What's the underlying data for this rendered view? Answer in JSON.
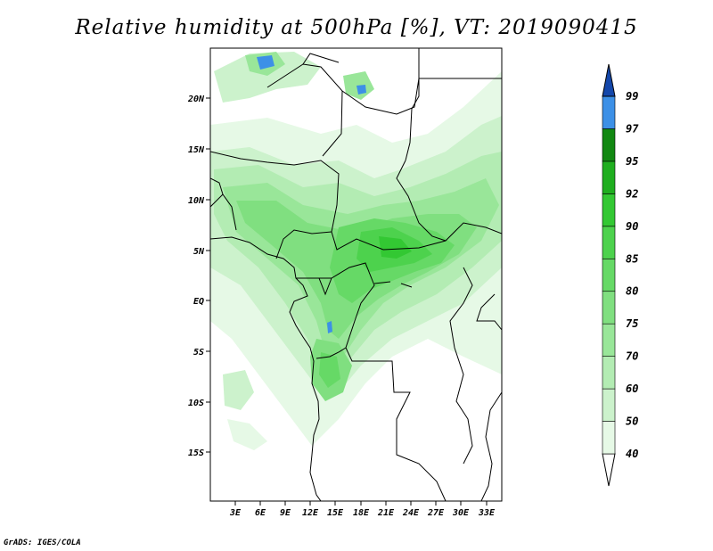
{
  "title": "Relative humidity at 500hPa [%], VT: 2019090415",
  "credit": "GrADS: IGES/COLA",
  "map": {
    "lat_ticks": [
      "20N",
      "15N",
      "10N",
      "5N",
      "EQ",
      "5S",
      "10S",
      "15S"
    ],
    "lon_ticks": [
      "3E",
      "6E",
      "9E",
      "12E",
      "15E",
      "18E",
      "21E",
      "24E",
      "27E",
      "30E",
      "33E"
    ],
    "region": "Central Africa"
  },
  "colorbar": {
    "levels": [
      "40",
      "50",
      "60",
      "70",
      "75",
      "80",
      "85",
      "90",
      "92",
      "95",
      "97",
      "99"
    ],
    "colors": [
      "#ffffff",
      "#e6f9e6",
      "#ccf2cc",
      "#b3ecb3",
      "#99e699",
      "#80df80",
      "#66d966",
      "#4dd24d",
      "#33c833",
      "#1fae1f",
      "#118811",
      "#3d90e6",
      "#2266cc",
      "#1447aa"
    ]
  }
}
